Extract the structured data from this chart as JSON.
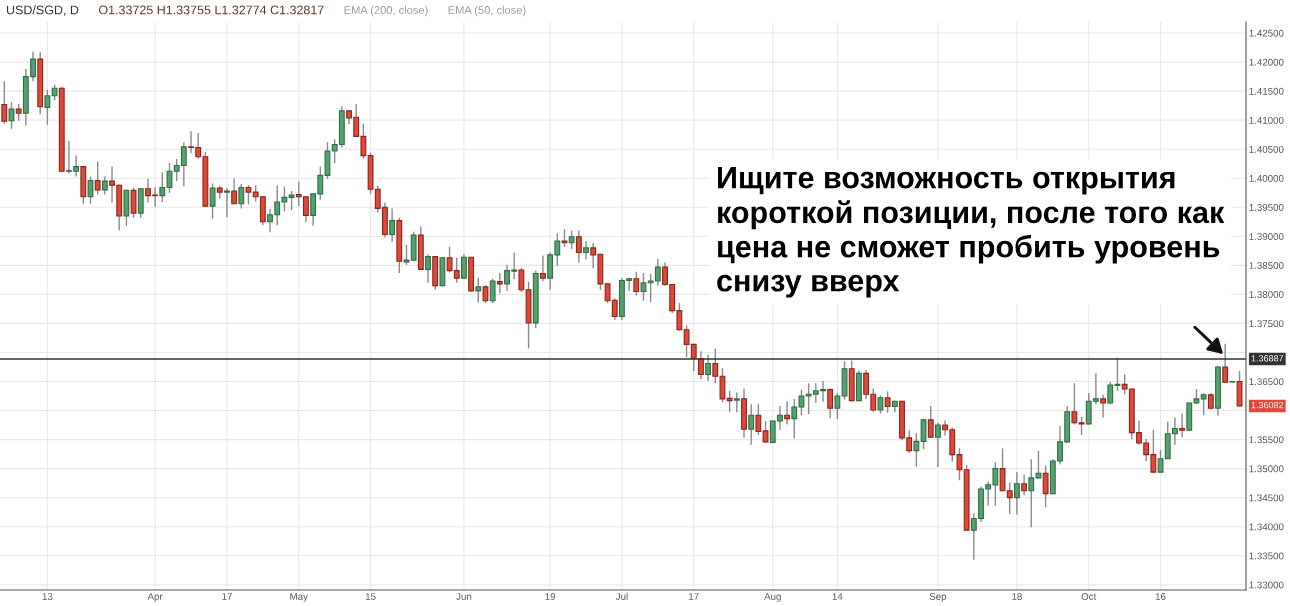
{
  "chart_data": {
    "type": "candlestick",
    "title": "USD/SGD, D",
    "subtitle": "O1.33725 H1.33755 L1.32774 C1.32817",
    "categories": [
      null,
      null,
      null,
      null,
      null,
      null,
      "13",
      null,
      null,
      null,
      null,
      null,
      null,
      null,
      null,
      null,
      null,
      null,
      null,
      null,
      null,
      "Apr",
      null,
      null,
      null,
      null,
      null,
      null,
      null,
      null,
      null,
      "17",
      null,
      null,
      null,
      null,
      null,
      null,
      null,
      null,
      null,
      "May",
      null,
      null,
      null,
      null,
      null,
      null,
      null,
      null,
      null,
      "15",
      null,
      null,
      null,
      null,
      null,
      null,
      null,
      null,
      null,
      null,
      null,
      null,
      "Jun",
      null,
      null,
      null,
      null,
      null,
      null,
      null,
      null,
      null,
      null,
      null,
      "19",
      null,
      null,
      null,
      null,
      null,
      null,
      null,
      null,
      null,
      "Jul",
      null,
      null,
      null,
      null,
      null,
      null,
      null,
      null,
      null,
      "17",
      null,
      null,
      null,
      null,
      null,
      null,
      null,
      null,
      null,
      null,
      "Aug",
      null,
      null,
      null,
      null,
      null,
      null,
      null,
      null,
      "14",
      null,
      null,
      null,
      null,
      null,
      null,
      null,
      null,
      null,
      null,
      null,
      null,
      null,
      "Sep",
      null,
      null,
      null,
      null,
      null,
      null,
      null,
      null,
      null,
      null,
      "18",
      null,
      null,
      null,
      null,
      null,
      null,
      null,
      null,
      null,
      "Oct",
      null,
      null,
      null,
      null,
      null,
      null,
      null,
      null,
      null,
      "16",
      null,
      null,
      null,
      null,
      null,
      null,
      null,
      null,
      null,
      null,
      null
    ],
    "ohlc": [
      [
        1.4127,
        1.4167,
        1.4094,
        1.4098
      ],
      [
        1.4099,
        1.4131,
        1.4085,
        1.4119
      ],
      [
        1.4119,
        1.4128,
        1.4099,
        1.4112
      ],
      [
        1.4112,
        1.4188,
        1.4091,
        1.4175
      ],
      [
        1.4175,
        1.4218,
        1.4167,
        1.4205
      ],
      [
        1.4205,
        1.4217,
        1.411,
        1.4123
      ],
      [
        1.4122,
        1.4152,
        1.4092,
        1.4142
      ],
      [
        1.4142,
        1.4161,
        1.4134,
        1.4155
      ],
      [
        1.4155,
        1.4157,
        1.4011,
        1.4012
      ],
      [
        1.4012,
        1.4064,
        1.4008,
        1.4013
      ],
      [
        1.4012,
        1.4039,
        1.4003,
        1.402
      ],
      [
        1.402,
        1.4021,
        1.3956,
        1.3968
      ],
      [
        1.3968,
        1.4003,
        1.3956,
        1.3996
      ],
      [
        1.3996,
        1.4029,
        1.3972,
        1.398
      ],
      [
        1.398,
        1.4003,
        1.3972,
        1.3995
      ],
      [
        1.3995,
        1.402,
        1.3958,
        1.3988
      ],
      [
        1.3988,
        1.3989,
        1.391,
        1.3935
      ],
      [
        1.3935,
        1.398,
        1.3918,
        1.3979
      ],
      [
        1.3979,
        1.3984,
        1.3932,
        1.394
      ],
      [
        1.394,
        1.3983,
        1.3932,
        1.3982
      ],
      [
        1.3982,
        1.3999,
        1.3958,
        1.397
      ],
      [
        1.3971,
        1.3984,
        1.3951,
        1.397
      ],
      [
        1.397,
        1.401,
        1.3959,
        1.3984
      ],
      [
        1.3984,
        1.4026,
        1.3975,
        1.4012
      ],
      [
        1.4012,
        1.4033,
        1.3995,
        1.4022
      ],
      [
        1.4022,
        1.4062,
        1.3986,
        1.4054
      ],
      [
        1.4054,
        1.4081,
        1.4043,
        1.4053
      ],
      [
        1.4053,
        1.4078,
        1.4034,
        1.4037
      ],
      [
        1.4037,
        1.4045,
        1.3951,
        1.3952
      ],
      [
        1.3952,
        1.3991,
        1.393,
        1.3983
      ],
      [
        1.3983,
        1.3987,
        1.3965,
        1.3976
      ],
      [
        1.3976,
        1.3983,
        1.3933,
        1.3978
      ],
      [
        1.3978,
        1.4,
        1.3955,
        1.3956
      ],
      [
        1.3956,
        1.399,
        1.3948,
        1.3984
      ],
      [
        1.3984,
        1.3988,
        1.3955,
        1.3976
      ],
      [
        1.3976,
        1.3988,
        1.396,
        1.3968
      ],
      [
        1.3968,
        1.3969,
        1.3919,
        1.3925
      ],
      [
        1.3925,
        1.3947,
        1.3907,
        1.3937
      ],
      [
        1.3937,
        1.3988,
        1.3919,
        1.3959
      ],
      [
        1.3959,
        1.3986,
        1.3943,
        1.3967
      ],
      [
        1.3967,
        1.3978,
        1.3945,
        1.3971
      ],
      [
        1.3972,
        1.3994,
        1.3952,
        1.3968
      ],
      [
        1.3968,
        1.3969,
        1.3924,
        1.3936
      ],
      [
        1.3936,
        1.3974,
        1.3918,
        1.3973
      ],
      [
        1.3973,
        1.402,
        1.3963,
        1.4005
      ],
      [
        1.4005,
        1.4062,
        1.3999,
        1.4047
      ],
      [
        1.4047,
        1.4067,
        1.4026,
        1.4058
      ],
      [
        1.4058,
        1.4124,
        1.4053,
        1.4116
      ],
      [
        1.4116,
        1.4117,
        1.4093,
        1.4104
      ],
      [
        1.4105,
        1.4128,
        1.4071,
        1.4072
      ],
      [
        1.4072,
        1.4094,
        1.4034,
        1.4039
      ],
      [
        1.4039,
        1.4044,
        1.3973,
        1.3981
      ],
      [
        1.3981,
        1.3987,
        1.3941,
        1.3948
      ],
      [
        1.395,
        1.3958,
        1.3898,
        1.3903
      ],
      [
        1.3903,
        1.3948,
        1.389,
        1.3927
      ],
      [
        1.3927,
        1.3932,
        1.3837,
        1.3857
      ],
      [
        1.3856,
        1.3885,
        1.3851,
        1.3859
      ],
      [
        1.3859,
        1.3908,
        1.3857,
        1.3902
      ],
      [
        1.3902,
        1.3917,
        1.3842,
        1.3843
      ],
      [
        1.3843,
        1.3869,
        1.382,
        1.3865
      ],
      [
        1.3865,
        1.3866,
        1.3808,
        1.3815
      ],
      [
        1.3815,
        1.3864,
        1.3814,
        1.3863
      ],
      [
        1.3863,
        1.3882,
        1.3838,
        1.3841
      ],
      [
        1.3841,
        1.3863,
        1.382,
        1.3828
      ],
      [
        1.3828,
        1.3869,
        1.3827,
        1.3864
      ],
      [
        1.3864,
        1.3865,
        1.3805,
        1.3806
      ],
      [
        1.3806,
        1.3828,
        1.3786,
        1.3813
      ],
      [
        1.3813,
        1.3816,
        1.3785,
        1.3789
      ],
      [
        1.3789,
        1.3827,
        1.3785,
        1.3823
      ],
      [
        1.3822,
        1.3837,
        1.3802,
        1.3818
      ],
      [
        1.3818,
        1.3851,
        1.3806,
        1.3841
      ],
      [
        1.384,
        1.3872,
        1.3826,
        1.3842
      ],
      [
        1.3842,
        1.3845,
        1.3804,
        1.3808
      ],
      [
        1.3808,
        1.3822,
        1.3707,
        1.3751
      ],
      [
        1.3751,
        1.3841,
        1.3742,
        1.3836
      ],
      [
        1.3836,
        1.3867,
        1.3823,
        1.3828
      ],
      [
        1.3828,
        1.3872,
        1.3808,
        1.3868
      ],
      [
        1.3868,
        1.3905,
        1.3849,
        1.3892
      ],
      [
        1.3892,
        1.3912,
        1.3882,
        1.3889
      ],
      [
        1.3889,
        1.391,
        1.3878,
        1.3899
      ],
      [
        1.3899,
        1.391,
        1.3855,
        1.3872
      ],
      [
        1.3872,
        1.3892,
        1.386,
        1.388
      ],
      [
        1.388,
        1.3889,
        1.3845,
        1.3868
      ],
      [
        1.3869,
        1.387,
        1.3808,
        1.3818
      ],
      [
        1.3818,
        1.3819,
        1.3785,
        1.3789
      ],
      [
        1.379,
        1.3793,
        1.3756,
        1.3762
      ],
      [
        1.3762,
        1.3828,
        1.3756,
        1.3824
      ],
      [
        1.3824,
        1.3829,
        1.3806,
        1.3827
      ],
      [
        1.3827,
        1.3839,
        1.3798,
        1.3805
      ],
      [
        1.3805,
        1.3837,
        1.3789,
        1.382
      ],
      [
        1.382,
        1.3835,
        1.3787,
        1.3823
      ],
      [
        1.3823,
        1.3861,
        1.3815,
        1.3847
      ],
      [
        1.3847,
        1.3855,
        1.3815,
        1.3817
      ],
      [
        1.3817,
        1.3818,
        1.3768,
        1.3772
      ],
      [
        1.3772,
        1.3785,
        1.3738,
        1.3739
      ],
      [
        1.3739,
        1.3747,
        1.3692,
        1.3714
      ],
      [
        1.3714,
        1.3715,
        1.3668,
        1.369
      ],
      [
        1.3689,
        1.3702,
        1.3654,
        1.3662
      ],
      [
        1.3662,
        1.3696,
        1.3651,
        1.3681
      ],
      [
        1.3681,
        1.3707,
        1.3647,
        1.3659
      ],
      [
        1.3659,
        1.3673,
        1.3614,
        1.362
      ],
      [
        1.3621,
        1.3634,
        1.3597,
        1.3617
      ],
      [
        1.3618,
        1.3631,
        1.3597,
        1.362
      ],
      [
        1.362,
        1.3638,
        1.3553,
        1.3568
      ],
      [
        1.3568,
        1.3611,
        1.3541,
        1.3592
      ],
      [
        1.3592,
        1.3611,
        1.3558,
        1.3564
      ],
      [
        1.3565,
        1.3582,
        1.3545,
        1.3546
      ],
      [
        1.3545,
        1.3583,
        1.3544,
        1.3582
      ],
      [
        1.3582,
        1.3608,
        1.3567,
        1.3592
      ],
      [
        1.3592,
        1.3616,
        1.3576,
        1.3586
      ],
      [
        1.3586,
        1.362,
        1.3552,
        1.3606
      ],
      [
        1.3606,
        1.3636,
        1.3592,
        1.3625
      ],
      [
        1.3625,
        1.3647,
        1.3594,
        1.3628
      ],
      [
        1.3628,
        1.3647,
        1.3613,
        1.3634
      ],
      [
        1.3634,
        1.3651,
        1.3615,
        1.3636
      ],
      [
        1.3636,
        1.3638,
        1.3587,
        1.3604
      ],
      [
        1.3604,
        1.363,
        1.3585,
        1.3625
      ],
      [
        1.3625,
        1.3685,
        1.3619,
        1.3672
      ],
      [
        1.3672,
        1.3686,
        1.3616,
        1.3617
      ],
      [
        1.3617,
        1.3669,
        1.3616,
        1.3664
      ],
      [
        1.3664,
        1.367,
        1.362,
        1.3628
      ],
      [
        1.3628,
        1.3638,
        1.3598,
        1.3601
      ],
      [
        1.3601,
        1.3626,
        1.3595,
        1.3622
      ],
      [
        1.3622,
        1.3633,
        1.3596,
        1.3607
      ],
      [
        1.3607,
        1.3617,
        1.3597,
        1.3616
      ],
      [
        1.3616,
        1.3617,
        1.3549,
        1.3553
      ],
      [
        1.3553,
        1.3566,
        1.3527,
        1.3531
      ],
      [
        1.3531,
        1.3561,
        1.3503,
        1.3547
      ],
      [
        1.3547,
        1.3586,
        1.3534,
        1.3584
      ],
      [
        1.3584,
        1.3608,
        1.3553,
        1.3554
      ],
      [
        1.3554,
        1.3579,
        1.3503,
        1.3575
      ],
      [
        1.3575,
        1.3583,
        1.3557,
        1.3567
      ],
      [
        1.3567,
        1.3571,
        1.3512,
        1.3524
      ],
      [
        1.3524,
        1.3535,
        1.348,
        1.3498
      ],
      [
        1.3498,
        1.3506,
        1.3393,
        1.3394
      ],
      [
        1.3394,
        1.3423,
        1.3343,
        1.3414
      ],
      [
        1.3414,
        1.3469,
        1.3408,
        1.3465
      ],
      [
        1.3465,
        1.3478,
        1.3436,
        1.3472
      ],
      [
        1.3472,
        1.3511,
        1.3436,
        1.35
      ],
      [
        1.35,
        1.3535,
        1.3461,
        1.3462
      ],
      [
        1.3462,
        1.3476,
        1.3422,
        1.345
      ],
      [
        1.345,
        1.3494,
        1.3421,
        1.3474
      ],
      [
        1.3474,
        1.349,
        1.3454,
        1.3462
      ],
      [
        1.3462,
        1.3516,
        1.3399,
        1.3484
      ],
      [
        1.3484,
        1.3531,
        1.3483,
        1.3492
      ],
      [
        1.3492,
        1.3505,
        1.3433,
        1.3457
      ],
      [
        1.3457,
        1.3516,
        1.3456,
        1.3513
      ],
      [
        1.3513,
        1.3574,
        1.3507,
        1.3546
      ],
      [
        1.3546,
        1.3608,
        1.3544,
        1.3598
      ],
      [
        1.3598,
        1.3647,
        1.3576,
        1.3579
      ],
      [
        1.3579,
        1.3589,
        1.3558,
        1.3577
      ],
      [
        1.3577,
        1.363,
        1.3576,
        1.3616
      ],
      [
        1.3616,
        1.3664,
        1.3611,
        1.362
      ],
      [
        1.362,
        1.3627,
        1.3588,
        1.3613
      ],
      [
        1.3613,
        1.3649,
        1.3611,
        1.3644
      ],
      [
        1.3643,
        1.3691,
        1.3634,
        1.3645
      ],
      [
        1.3645,
        1.3662,
        1.3628,
        1.3637
      ],
      [
        1.3637,
        1.3638,
        1.3551,
        1.3562
      ],
      [
        1.3562,
        1.3583,
        1.3541,
        1.3544
      ],
      [
        1.3544,
        1.3551,
        1.3513,
        1.3524
      ],
      [
        1.3524,
        1.3567,
        1.3493,
        1.3494
      ],
      [
        1.3494,
        1.3532,
        1.3493,
        1.3517
      ],
      [
        1.3517,
        1.3581,
        1.3516,
        1.356
      ],
      [
        1.356,
        1.3588,
        1.3541,
        1.3569
      ],
      [
        1.3569,
        1.3595,
        1.3554,
        1.3566
      ],
      [
        1.3566,
        1.3614,
        1.3565,
        1.3613
      ],
      [
        1.3613,
        1.3637,
        1.3611,
        1.362
      ],
      [
        1.362,
        1.363,
        1.3592,
        1.3627
      ],
      [
        1.3627,
        1.363,
        1.3602,
        1.3604
      ],
      [
        1.3604,
        1.3677,
        1.3591,
        1.3675
      ],
      [
        1.3675,
        1.3715,
        1.3648,
        1.3649
      ],
      [
        1.3649,
        1.365,
        1.3649,
        1.365
      ],
      [
        1.365,
        1.3668,
        1.3607,
        1.3608
      ]
    ],
    "ylim": [
      1.3291,
      1.4269
    ],
    "yticks": [
      {
        "value": 1.33,
        "label": "1.33000"
      },
      {
        "value": 1.335,
        "label": "1.33500"
      },
      {
        "value": 1.34,
        "label": "1.34000"
      },
      {
        "value": 1.345,
        "label": "1.34500"
      },
      {
        "value": 1.35,
        "label": "1.35000"
      },
      {
        "value": 1.355,
        "label": "1.35500"
      },
      {
        "value": 1.36,
        "label": null
      },
      {
        "value": 1.365,
        "label": "1.36500"
      },
      {
        "value": 1.37,
        "label": null
      },
      {
        "value": 1.375,
        "label": "1.37500"
      },
      {
        "value": 1.38,
        "label": "1.38000"
      },
      {
        "value": 1.385,
        "label": "1.38500"
      },
      {
        "value": 1.39,
        "label": "1.39000"
      },
      {
        "value": 1.395,
        "label": "1.39500"
      },
      {
        "value": 1.4,
        "label": "1.40000"
      },
      {
        "value": 1.405,
        "label": "1.40500"
      },
      {
        "value": 1.41,
        "label": "1.41000"
      },
      {
        "value": 1.415,
        "label": "1.41500"
      },
      {
        "value": 1.42,
        "label": "1.42000"
      },
      {
        "value": 1.425,
        "label": "1.42500"
      }
    ],
    "grid": true,
    "ref_lines": [
      {
        "axis": "y",
        "value": 1.36887,
        "label": "1.36887",
        "color": "#333333"
      }
    ],
    "annotations": [
      "EMA (200, close)",
      "EMA (50, close)",
      "Ищите возможность открытия\nкороткой позиции, после того как\nцена не сможет пробить уровень\nснизу вверх",
      "1.36082"
    ]
  }
}
